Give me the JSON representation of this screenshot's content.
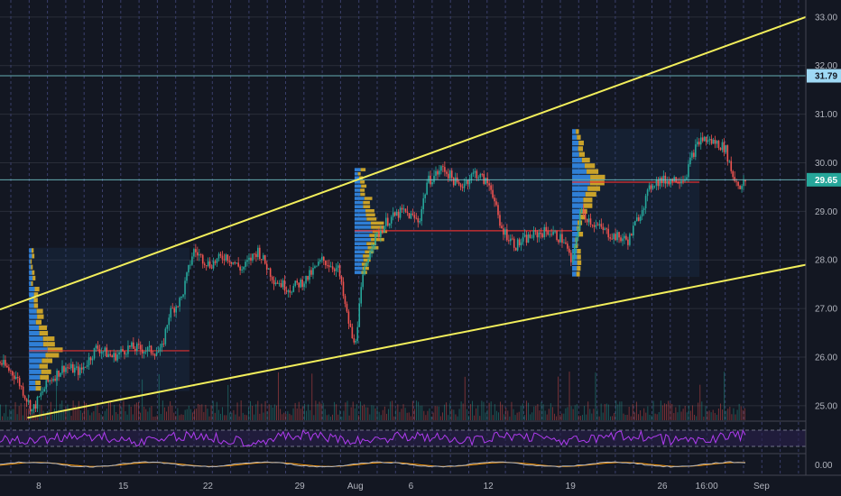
{
  "chart_data": {
    "type": "candlestick",
    "price_axis": {
      "ticks": [
        "33.00",
        "32.00",
        "31.00",
        "30.00",
        "29.00",
        "28.00",
        "27.00",
        "26.00",
        "25.00"
      ],
      "range": [
        24.7,
        33.35
      ]
    },
    "date_axis": {
      "ticks": [
        "8",
        "15",
        "22",
        "29",
        "Aug",
        "6",
        "12",
        "19",
        "26",
        "16:00",
        "Sep"
      ]
    },
    "price_badges": [
      {
        "label": "31.79",
        "price": 31.79,
        "color": "#9fd9f5"
      },
      {
        "label": "29.65",
        "price": 29.65,
        "color": "#26a69a"
      }
    ],
    "horizontal_levels": [
      31.79,
      29.65
    ],
    "channel_lines": [
      {
        "name": "upper",
        "from": [
          0.0,
          26.98
        ],
        "to": [
          1.0,
          33.0
        ],
        "color": "#f2ee5b"
      },
      {
        "name": "lower",
        "from": [
          0.034,
          24.75
        ],
        "to": [
          1.0,
          27.9
        ],
        "color": "#f2ee5b"
      }
    ],
    "volume_profiles": [
      {
        "poc_price": 26.13,
        "range": [
          25.3,
          28.25
        ]
      },
      {
        "poc_price": 28.6,
        "range": [
          27.7,
          29.9
        ]
      },
      {
        "poc_price": 29.6,
        "range": [
          27.65,
          30.7
        ]
      }
    ],
    "price_path": [
      [
        0.0,
        25.9
      ],
      [
        0.02,
        25.6
      ],
      [
        0.04,
        24.9
      ],
      [
        0.06,
        25.5
      ],
      [
        0.08,
        25.8
      ],
      [
        0.1,
        25.7
      ],
      [
        0.12,
        26.2
      ],
      [
        0.14,
        26.0
      ],
      [
        0.16,
        26.2
      ],
      [
        0.18,
        26.15
      ],
      [
        0.2,
        26.1
      ],
      [
        0.21,
        26.9
      ],
      [
        0.225,
        27.2
      ],
      [
        0.24,
        28.2
      ],
      [
        0.26,
        27.9
      ],
      [
        0.28,
        28.1
      ],
      [
        0.3,
        27.8
      ],
      [
        0.32,
        28.2
      ],
      [
        0.34,
        27.6
      ],
      [
        0.36,
        27.4
      ],
      [
        0.38,
        27.6
      ],
      [
        0.4,
        28.0
      ],
      [
        0.42,
        27.8
      ],
      [
        0.43,
        26.9
      ],
      [
        0.44,
        26.2
      ],
      [
        0.45,
        27.6
      ],
      [
        0.46,
        28.3
      ],
      [
        0.48,
        28.8
      ],
      [
        0.5,
        29.0
      ],
      [
        0.52,
        28.8
      ],
      [
        0.53,
        29.6
      ],
      [
        0.55,
        29.9
      ],
      [
        0.57,
        29.5
      ],
      [
        0.59,
        29.8
      ],
      [
        0.61,
        29.5
      ],
      [
        0.62,
        28.7
      ],
      [
        0.64,
        28.3
      ],
      [
        0.66,
        28.5
      ],
      [
        0.68,
        28.6
      ],
      [
        0.7,
        28.4
      ],
      [
        0.71,
        27.9
      ],
      [
        0.72,
        29.0
      ],
      [
        0.74,
        28.7
      ],
      [
        0.76,
        28.5
      ],
      [
        0.78,
        28.4
      ],
      [
        0.8,
        29.2
      ],
      [
        0.81,
        29.6
      ],
      [
        0.83,
        29.65
      ],
      [
        0.85,
        29.7
      ],
      [
        0.86,
        30.2
      ],
      [
        0.87,
        30.5
      ],
      [
        0.89,
        30.4
      ],
      [
        0.9,
        30.3
      ],
      [
        0.91,
        29.7
      ],
      [
        0.92,
        29.5
      ],
      [
        0.925,
        29.62
      ]
    ],
    "oscillator_axis": {
      "label": "0.00"
    },
    "legend": "none",
    "grid": true
  }
}
